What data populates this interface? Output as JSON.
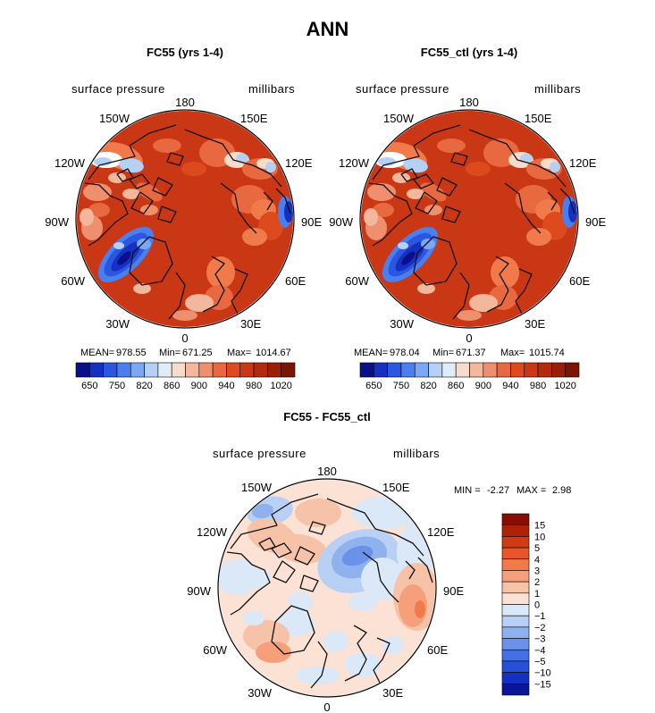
{
  "chart_data": {
    "type": "contour-map",
    "main_title": "ANN",
    "panels": [
      {
        "id": "p1",
        "title": "FC55 (yrs 1-4)",
        "left_label": "surface pressure",
        "right_label": "millibars",
        "longitude_labels": [
          "180",
          "150E",
          "120E",
          "90E",
          "60E",
          "30E",
          "0",
          "30W",
          "60W",
          "90W",
          "120W",
          "150W"
        ],
        "stats": {
          "mean_label": "MEAN=",
          "mean": "978.55",
          "min_label": "Min=",
          "min": "671.25",
          "max_label": "Max=",
          "max": "1014.67"
        },
        "colorbar_ticks": [
          "650",
          "750",
          "820",
          "860",
          "900",
          "940",
          "980",
          "1020"
        ],
        "colorbar_colors": [
          "#0a0f8a",
          "#1530c2",
          "#2a56e0",
          "#4a7ff0",
          "#7aa8f5",
          "#b4d0f5",
          "#e2ecf6",
          "#f7dccc",
          "#f3b79b",
          "#ee906d",
          "#e8693f",
          "#dc4a1e",
          "#c93714",
          "#b22b0c",
          "#9a1f06",
          "#7d1302"
        ]
      },
      {
        "id": "p2",
        "title": "FC55_ctl (yrs 1-4)",
        "left_label": "surface pressure",
        "right_label": "millibars",
        "longitude_labels": [
          "180",
          "150E",
          "120E",
          "90E",
          "60E",
          "30E",
          "0",
          "30W",
          "60W",
          "90W",
          "120W",
          "150W"
        ],
        "stats": {
          "mean_label": "MEAN=",
          "mean": "978.04",
          "min_label": "Min=",
          "min": "671.37",
          "max_label": "Max=",
          "max": "1015.74"
        },
        "colorbar_ticks": [
          "650",
          "750",
          "820",
          "860",
          "900",
          "940",
          "980",
          "1020"
        ],
        "colorbar_colors": [
          "#0a0f8a",
          "#1530c2",
          "#2a56e0",
          "#4a7ff0",
          "#7aa8f5",
          "#b4d0f5",
          "#e2ecf6",
          "#f7dccc",
          "#f3b79b",
          "#ee906d",
          "#e8693f",
          "#dc4a1e",
          "#c93714",
          "#b22b0c",
          "#9a1f06",
          "#7d1302"
        ]
      },
      {
        "id": "p3",
        "title": "FC55 - FC55_ctl",
        "left_label": "surface pressure",
        "right_label": "millibars",
        "longitude_labels": [
          "180",
          "150E",
          "120E",
          "90E",
          "60E",
          "30E",
          "0",
          "30W",
          "60W",
          "90W",
          "120W",
          "150W"
        ],
        "stats": {
          "min_label": "MIN =",
          "min": "-2.27",
          "max_label": "MAX =",
          "max": "2.98"
        },
        "colorbar_ticks": [
          "15",
          "10",
          "5",
          "4",
          "3",
          "2",
          "1",
          "0",
          "−1",
          "−2",
          "−3",
          "−4",
          "−5",
          "−10",
          "−15"
        ],
        "colorbar_colors": [
          "#8a0c02",
          "#b02208",
          "#d23a14",
          "#e8552a",
          "#f07a4a",
          "#f5a07a",
          "#f7c3a8",
          "#fbe2d4",
          "#dbe8f8",
          "#b7d0f4",
          "#8fb2ee",
          "#6a92ea",
          "#4470e4",
          "#2450da",
          "#1430c4",
          "#0a1698"
        ]
      }
    ]
  }
}
